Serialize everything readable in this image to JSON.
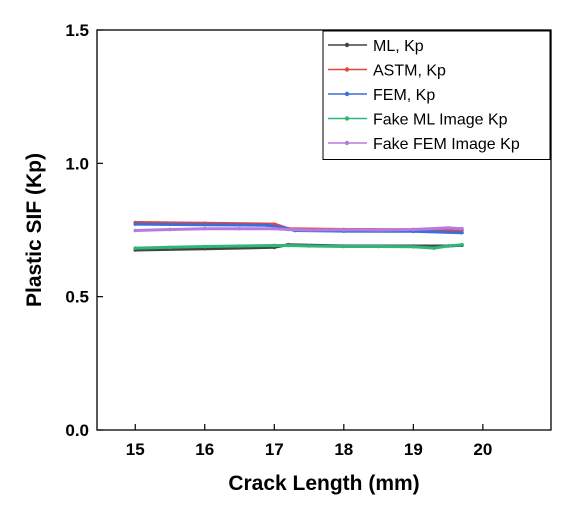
{
  "chart_data": {
    "type": "line",
    "title": "",
    "xlabel": "Crack Length (mm)",
    "ylabel": "Plastic SIF (Kp)",
    "xlim": [
      14.45,
      20.98
    ],
    "ylim": [
      0.0,
      1.5
    ],
    "xticks": [
      15,
      16,
      17,
      18,
      19,
      20
    ],
    "xtick_labels": [
      "15",
      "16",
      "17",
      "18",
      "19",
      "20"
    ],
    "yticks": [
      0.0,
      0.5,
      1.0,
      1.5
    ],
    "ytick_labels": [
      "0.0",
      "0.5",
      "1.0",
      "1.5"
    ],
    "grid": false,
    "legend_position": "top-right",
    "series": [
      {
        "name": "ML, Kp",
        "color": "#444444",
        "x": [
          15.0,
          16.0,
          17.0,
          17.2,
          18.0,
          19.0,
          19.5,
          19.7
        ],
        "y": [
          0.675,
          0.68,
          0.685,
          0.695,
          0.69,
          0.69,
          0.69,
          0.693
        ]
      },
      {
        "name": "ASTM, Kp",
        "color": "#e8443a",
        "x": [
          15.0,
          16.0,
          17.0,
          17.2,
          18.0,
          19.0,
          19.7
        ],
        "y": [
          0.778,
          0.775,
          0.772,
          0.755,
          0.752,
          0.751,
          0.75
        ]
      },
      {
        "name": "FEM, Kp",
        "color": "#3a6fd8",
        "x": [
          15.0,
          16.0,
          16.9,
          17.1,
          17.3,
          18.0,
          19.0,
          19.7
        ],
        "y": [
          0.772,
          0.77,
          0.768,
          0.76,
          0.748,
          0.746,
          0.745,
          0.74
        ]
      },
      {
        "name": "Fake ML Image Kp",
        "color": "#2fb77a",
        "x": [
          15.0,
          15.5,
          16.0,
          16.5,
          17.0,
          17.2,
          17.5,
          18.0,
          18.5,
          19.0,
          19.3,
          19.5,
          19.7
        ],
        "y": [
          0.682,
          0.685,
          0.688,
          0.69,
          0.692,
          0.692,
          0.69,
          0.688,
          0.688,
          0.687,
          0.682,
          0.69,
          0.695
        ]
      },
      {
        "name": "Fake FEM Image Kp",
        "color": "#b77ae0",
        "x": [
          15.0,
          15.5,
          16.0,
          16.5,
          17.0,
          17.2,
          17.5,
          18.0,
          18.5,
          19.0,
          19.5,
          19.7
        ],
        "y": [
          0.748,
          0.752,
          0.755,
          0.755,
          0.755,
          0.752,
          0.75,
          0.751,
          0.75,
          0.752,
          0.758,
          0.755
        ]
      }
    ]
  }
}
